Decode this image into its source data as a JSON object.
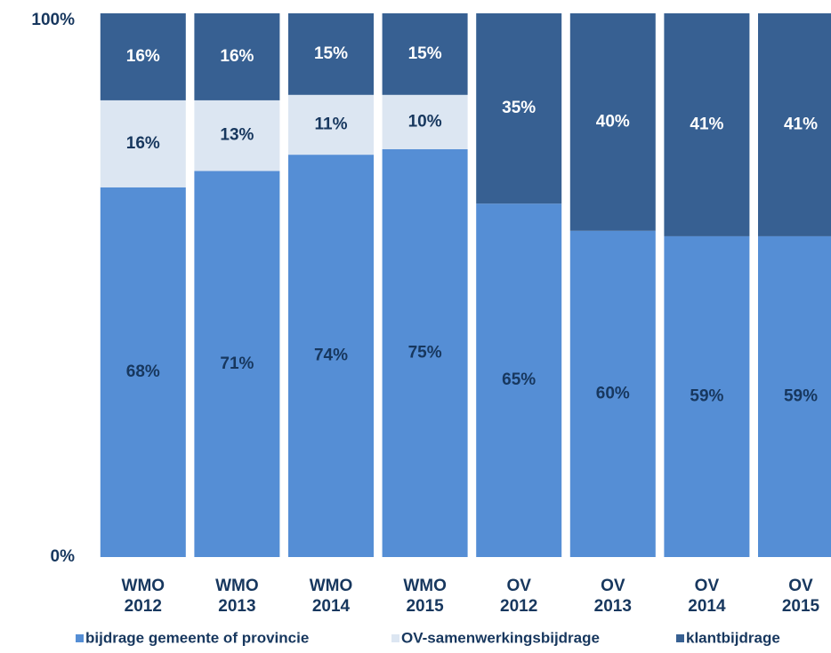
{
  "chart_data": {
    "type": "stacked_bar",
    "categories": [
      "WMO 2012",
      "WMO 2013",
      "WMO 2014",
      "WMO 2015",
      "OV 2012",
      "OV 2013",
      "OV 2014",
      "OV 2015"
    ],
    "series": [
      {
        "name": "bijdrage gemeente of provincie",
        "color": "#558ed5",
        "label_color": "#17375e",
        "values": [
          68,
          71,
          74,
          75,
          65,
          60,
          59,
          59
        ],
        "value_labels": [
          "68%",
          "71%",
          "74%",
          "75%",
          "65%",
          "60%",
          "59%",
          "59%"
        ]
      },
      {
        "name": "OV-samenwerkingsbijdrage",
        "color": "#dce6f2",
        "label_color": "#17375e",
        "values": [
          16,
          13,
          11,
          10,
          null,
          null,
          null,
          null
        ],
        "value_labels": [
          "16%",
          "13%",
          "11%",
          "10%",
          null,
          null,
          null,
          null
        ]
      },
      {
        "name": "klantbijdrage",
        "color": "#376092",
        "label_color": "#ffffff",
        "values": [
          16,
          16,
          15,
          15,
          35,
          40,
          41,
          41
        ],
        "value_labels": [
          "16%",
          "16%",
          "15%",
          "15%",
          "35%",
          "40%",
          "41%",
          "41%"
        ]
      }
    ],
    "ylim": [
      0,
      100
    ],
    "yticks": [
      {
        "value": 0,
        "label": "0%"
      },
      {
        "value": 100,
        "label": "100%"
      }
    ],
    "legend": "bottom"
  }
}
